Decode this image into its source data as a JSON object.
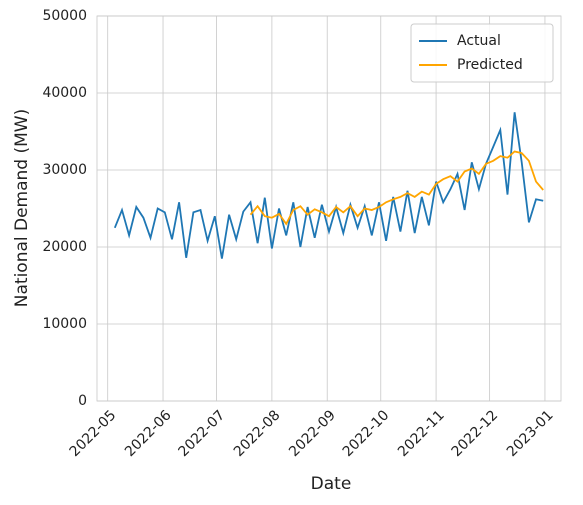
{
  "chart_data": {
    "type": "line",
    "x_label": "Date",
    "y_label": "National Demand (MW)",
    "x": [
      "2022-05-05",
      "2022-05-09",
      "2022-05-13",
      "2022-05-17",
      "2022-05-21",
      "2022-05-25",
      "2022-05-29",
      "2022-06-02",
      "2022-06-06",
      "2022-06-10",
      "2022-06-14",
      "2022-06-18",
      "2022-06-22",
      "2022-06-26",
      "2022-06-30",
      "2022-07-04",
      "2022-07-08",
      "2022-07-12",
      "2022-07-16",
      "2022-07-20",
      "2022-07-24",
      "2022-07-28",
      "2022-08-01",
      "2022-08-05",
      "2022-08-09",
      "2022-08-13",
      "2022-08-17",
      "2022-08-21",
      "2022-08-25",
      "2022-08-29",
      "2022-09-02",
      "2022-09-06",
      "2022-09-10",
      "2022-09-14",
      "2022-09-18",
      "2022-09-22",
      "2022-09-26",
      "2022-09-30",
      "2022-10-04",
      "2022-10-08",
      "2022-10-12",
      "2022-10-16",
      "2022-10-20",
      "2022-10-24",
      "2022-10-28",
      "2022-11-01",
      "2022-11-05",
      "2022-11-09",
      "2022-11-13",
      "2022-11-17",
      "2022-11-21",
      "2022-11-25",
      "2022-11-29",
      "2022-12-03",
      "2022-12-07",
      "2022-12-11",
      "2022-12-15",
      "2022-12-19",
      "2022-12-23",
      "2022-12-27",
      "2022-12-31"
    ],
    "series": [
      {
        "name": "Actual",
        "color": "#1f77b4",
        "values": [
          22500,
          24800,
          21500,
          25200,
          23800,
          21200,
          25000,
          24500,
          21000,
          25800,
          18600,
          24500,
          24800,
          20800,
          24000,
          18500,
          24200,
          21000,
          24600,
          25800,
          20500,
          26400,
          19800,
          25000,
          21500,
          25800,
          20000,
          25200,
          21200,
          25500,
          22000,
          25200,
          21800,
          25500,
          22500,
          25300,
          21500,
          25800,
          20800,
          26500,
          22000,
          27300,
          21800,
          26500,
          22800,
          28500,
          25800,
          27500,
          29500,
          24800,
          31000,
          27500,
          30800,
          33000,
          35200,
          26800,
          37500,
          31000,
          23200,
          26200,
          26000
        ]
      },
      {
        "name": "Predicted",
        "color": "#ffa500",
        "values": [
          null,
          null,
          null,
          null,
          null,
          null,
          null,
          null,
          null,
          null,
          null,
          null,
          null,
          null,
          null,
          null,
          null,
          null,
          null,
          24200,
          25300,
          24000,
          23800,
          24300,
          23000,
          24800,
          25300,
          24200,
          24900,
          24500,
          24000,
          25200,
          24500,
          25300,
          24000,
          25000,
          24800,
          25200,
          25800,
          26200,
          26500,
          27000,
          26500,
          27200,
          26800,
          28200,
          28800,
          29200,
          28500,
          29800,
          30200,
          29500,
          30800,
          31200,
          31800,
          31600,
          32400,
          32200,
          31200,
          28500,
          27400
        ]
      }
    ],
    "xlim": [
      "2022-04-25",
      "2023-01-10"
    ],
    "xticks": [
      "2022-05",
      "2022-06",
      "2022-07",
      "2022-08",
      "2022-09",
      "2022-10",
      "2022-11",
      "2022-12",
      "2023-01"
    ],
    "ylim": [
      0,
      50000
    ],
    "yticks": [
      0,
      10000,
      20000,
      30000,
      40000,
      50000
    ],
    "grid": true,
    "legend": "upper right"
  }
}
